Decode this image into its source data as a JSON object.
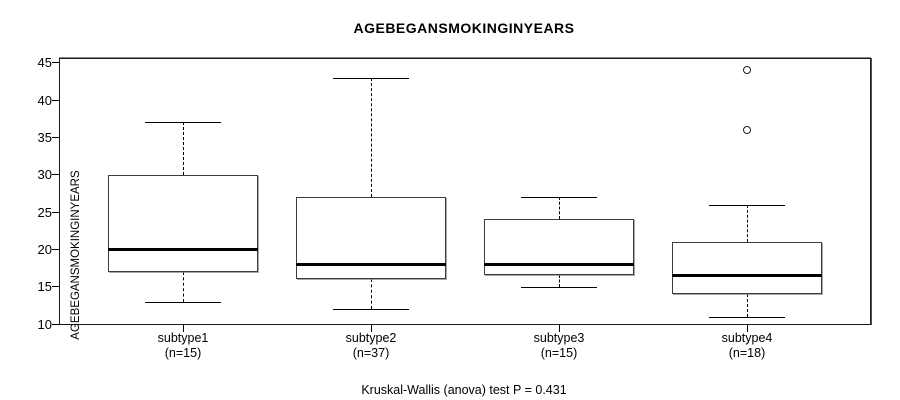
{
  "chart_data": {
    "type": "boxplot",
    "title": "AGEBEGANSMOKINGINYEARS",
    "ylabel": "AGEBEGANSMOKINGINYEARS",
    "xlabel": "",
    "footer": "Kruskal-Wallis (anova) test P = 0.431",
    "ylim": [
      10,
      45.5
    ],
    "yticks": [
      10,
      15,
      20,
      25,
      30,
      35,
      40,
      45
    ],
    "grid": false,
    "legend": "none",
    "groups": [
      {
        "label": "subtype1",
        "n_label": "(n=15)",
        "whisker_low": 13,
        "q1": 17,
        "median": 20,
        "q3": 30,
        "whisker_high": 37,
        "outliers": []
      },
      {
        "label": "subtype2",
        "n_label": "(n=37)",
        "whisker_low": 12,
        "q1": 16,
        "median": 18,
        "q3": 27,
        "whisker_high": 43,
        "outliers": []
      },
      {
        "label": "subtype3",
        "n_label": "(n=15)",
        "whisker_low": 15,
        "q1": 16.5,
        "median": 18,
        "q3": 24,
        "whisker_high": 27,
        "outliers": []
      },
      {
        "label": "subtype4",
        "n_label": "(n=18)",
        "whisker_low": 11,
        "q1": 14,
        "median": 16.5,
        "q3": 21,
        "whisker_high": 26,
        "outliers": [
          36,
          44
        ]
      }
    ],
    "colors": {
      "box_fill": "#ffffff",
      "line": "#000000",
      "background": "#ffffff"
    }
  }
}
